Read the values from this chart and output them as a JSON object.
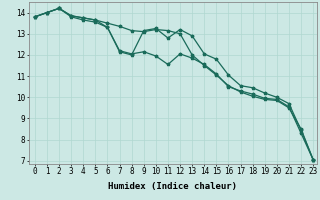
{
  "xlabel": "Humidex (Indice chaleur)",
  "bg_color": "#cce8e4",
  "grid_color": "#b0d8d0",
  "line_color": "#1a6b5a",
  "xlim": [
    -0.5,
    23.3
  ],
  "ylim": [
    6.85,
    14.5
  ],
  "yticks": [
    7,
    8,
    9,
    10,
    11,
    12,
    13,
    14
  ],
  "xticks": [
    0,
    1,
    2,
    3,
    4,
    5,
    6,
    7,
    8,
    9,
    10,
    11,
    12,
    13,
    14,
    15,
    16,
    17,
    18,
    19,
    20,
    21,
    22,
    23
  ],
  "series1_x": [
    0,
    1,
    2,
    3,
    4,
    5,
    6,
    7,
    8,
    9,
    10,
    11,
    12,
    13,
    14,
    15,
    16,
    17,
    18,
    19,
    20,
    21,
    22,
    23
  ],
  "series1_y": [
    13.8,
    14.0,
    14.2,
    13.85,
    13.75,
    13.65,
    13.3,
    12.15,
    12.0,
    13.15,
    13.25,
    12.8,
    13.2,
    12.9,
    12.05,
    11.8,
    11.05,
    10.55,
    10.45,
    10.2,
    10.0,
    9.7,
    8.45,
    7.05
  ],
  "series2_x": [
    0,
    1,
    2,
    3,
    4,
    5,
    6,
    7,
    8,
    9,
    10,
    11,
    12,
    13,
    14,
    15,
    16,
    17,
    18,
    19,
    20,
    21,
    22,
    23
  ],
  "series2_y": [
    13.8,
    14.0,
    14.2,
    13.8,
    13.65,
    13.55,
    13.3,
    12.2,
    12.05,
    12.15,
    11.95,
    11.55,
    12.05,
    11.85,
    11.55,
    11.1,
    10.5,
    10.3,
    10.15,
    9.95,
    9.9,
    9.55,
    8.3,
    7.05
  ],
  "series3_x": [
    0,
    1,
    2,
    3,
    4,
    5,
    6,
    7,
    8,
    9,
    10,
    11,
    12,
    13,
    14,
    15,
    16,
    17,
    18,
    19,
    20,
    21,
    22,
    23
  ],
  "series3_y": [
    13.8,
    14.0,
    14.2,
    13.85,
    13.75,
    13.65,
    13.5,
    13.35,
    13.15,
    13.1,
    13.2,
    13.15,
    13.0,
    12.0,
    11.5,
    11.05,
    10.55,
    10.25,
    10.05,
    9.9,
    9.85,
    9.5,
    8.5,
    7.05
  ],
  "marker_size": 2.5,
  "line_width": 0.9,
  "label_fontsize": 6.5,
  "tick_fontsize": 5.5
}
